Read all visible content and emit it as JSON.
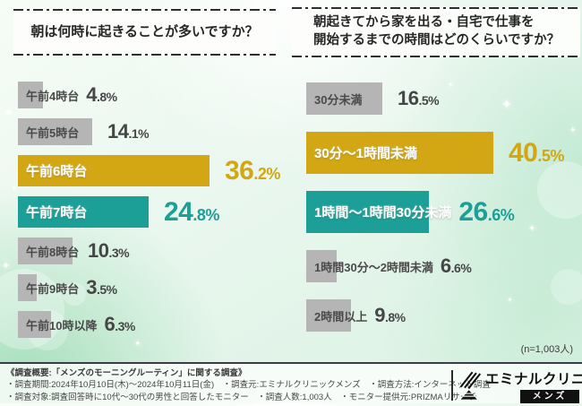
{
  "colors": {
    "gold": "#d2a713",
    "teal": "#1b9f96",
    "gray": "#b5b5b5",
    "pct_text": "#464646"
  },
  "chart_data": [
    {
      "type": "bar",
      "orientation": "horizontal",
      "title": "朝は何時に起きることが多いですか？",
      "title_lines": [
        "朝は何時に起きることが多いですか？"
      ],
      "unit": "%",
      "xlim": [
        0,
        50
      ],
      "grid": false,
      "categories": [
        "午前4時台",
        "午前5時台",
        "午前6時台",
        "午前7時台",
        "午前8時台",
        "午前9時台",
        "午前10時以降"
      ],
      "values": [
        4.8,
        14.1,
        36.2,
        24.8,
        10.3,
        3.5,
        6.3
      ],
      "highlights": [
        null,
        null,
        "gold",
        "teal",
        null,
        null,
        null
      ]
    },
    {
      "type": "bar",
      "orientation": "horizontal",
      "title": "朝起きてから家を出る・自宅で仕事を開始するまでの時間はどのくらいですか？",
      "title_lines": [
        "朝起きてから家を出る・自宅で仕事を",
        "開始するまでの時間はどのくらいですか？"
      ],
      "unit": "%",
      "xlim": [
        0,
        50
      ],
      "grid": false,
      "categories": [
        "30分未満",
        "30分〜1時間未満",
        "1時間〜1時間30分未満",
        "1時間30分〜2時間未満",
        "2時間以上"
      ],
      "values": [
        16.5,
        40.5,
        26.6,
        6.6,
        9.8
      ],
      "highlights": [
        null,
        "gold",
        "teal",
        null,
        null
      ]
    }
  ],
  "note": "(n=1,003人)",
  "footer": {
    "summary_title": "《調査概要:「メンズのモーニングルーティン」に関する調査》",
    "lines": [
      "・調査期間:2024年10月10日(木)〜2024年10月11日(金)　・調査元:エミナルクリニックメンズ　・調査方法:インターネット調査",
      "・調査対象:調査回答時に10代〜30代の男性と回答したモニター　・調査人数:1,003人　・モニター提供元:PRIZMAリサーチ"
    ],
    "logo": {
      "brand": "エミナルクリニック",
      "sub": "メンズ"
    }
  }
}
